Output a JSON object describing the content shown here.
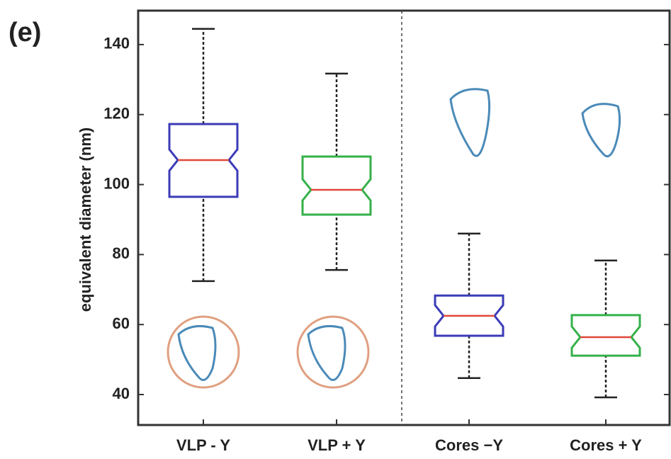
{
  "chart_data": {
    "type": "box",
    "panel_label": "(e)",
    "y_label": "equivalent diameter (nm)",
    "categories": [
      "VLP - Y",
      "VLP + Y",
      "Cores −Y",
      "Cores + Y"
    ],
    "colors": [
      "#3b3bb8",
      "#35b04a",
      "#3b3bb8",
      "#35b04a"
    ],
    "median_color": "#e0483a",
    "stats": [
      {
        "whisker_low": 72.4,
        "q1": 96.5,
        "median": 107,
        "q3": 117.3,
        "whisker_high": 144.5
      },
      {
        "whisker_low": 75.6,
        "q1": 91.4,
        "median": 98.5,
        "q3": 108,
        "whisker_high": 131.7
      },
      {
        "whisker_low": 44.7,
        "q1": 56.8,
        "median": 62.5,
        "q3": 68.3,
        "whisker_high": 86
      },
      {
        "whisker_low": 39.2,
        "q1": 51.1,
        "median": 56.4,
        "q3": 62.7,
        "whisker_high": 78.3
      }
    ],
    "ylim": [
      31.3,
      149.7
    ],
    "yticks": [
      40,
      60,
      80,
      100,
      120,
      140
    ]
  }
}
